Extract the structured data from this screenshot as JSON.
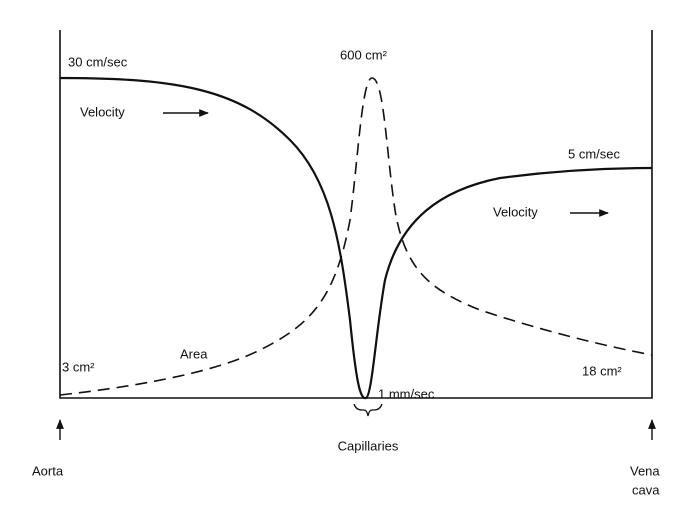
{
  "labels": {
    "velocity_start": "30 cm/sec",
    "velocity_left": "Velocity",
    "area_peak": "600 cm²",
    "velocity_end": "5 cm/sec",
    "velocity_right": "Velocity",
    "area_start": "3 cm²",
    "area": "Area",
    "area_end": "18 cm²",
    "velocity_min": "1 mm/sec",
    "capillaries": "Capillaries",
    "aorta": "Aorta",
    "vena_cava": [
      "Vena",
      "cava"
    ]
  }
}
